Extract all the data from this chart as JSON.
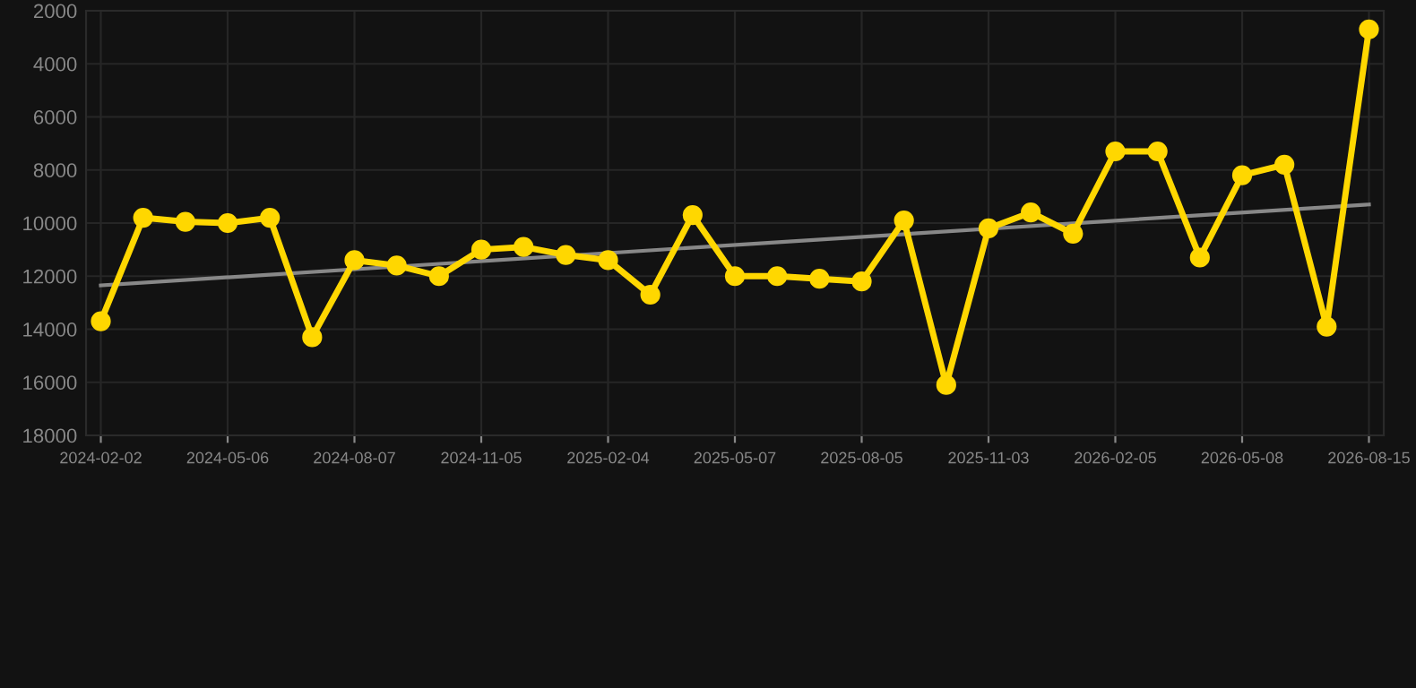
{
  "chart_data": {
    "type": "line",
    "categories": [
      "2024-02-02",
      null,
      null,
      "2024-05-06",
      null,
      null,
      "2024-08-07",
      null,
      null,
      "2024-11-05",
      null,
      null,
      "2025-02-04",
      null,
      null,
      "2025-05-07",
      null,
      null,
      "2025-08-05",
      null,
      null,
      "2025-11-03",
      null,
      null,
      "2026-02-05",
      null,
      null,
      "2026-05-08",
      null,
      null,
      "2026-08-15"
    ],
    "series": [
      {
        "color": "#ffd700",
        "marker": "circle",
        "values": [
          13700,
          9800,
          9950,
          10000,
          9800,
          14300,
          11400,
          11600,
          12000,
          11000,
          10900,
          11200,
          11400,
          12700,
          9700,
          12000,
          12000,
          12100,
          12200,
          9900,
          16100,
          10200,
          9600,
          10400,
          7300,
          7300,
          11300,
          8200,
          7800,
          13900,
          2700
        ]
      },
      {
        "type": "line",
        "color": "#888888",
        "marker": "none",
        "values": [
          12350,
          null,
          null,
          null,
          null,
          null,
          null,
          null,
          null,
          null,
          null,
          null,
          null,
          null,
          null,
          null,
          null,
          null,
          null,
          null,
          null,
          null,
          null,
          null,
          null,
          null,
          null,
          null,
          null,
          null,
          9300
        ]
      }
    ],
    "ylim": [
      18000,
      2000
    ],
    "yticks": [
      2000,
      4000,
      6000,
      8000,
      10000,
      12000,
      14000,
      16000,
      18000
    ],
    "grid": true
  }
}
